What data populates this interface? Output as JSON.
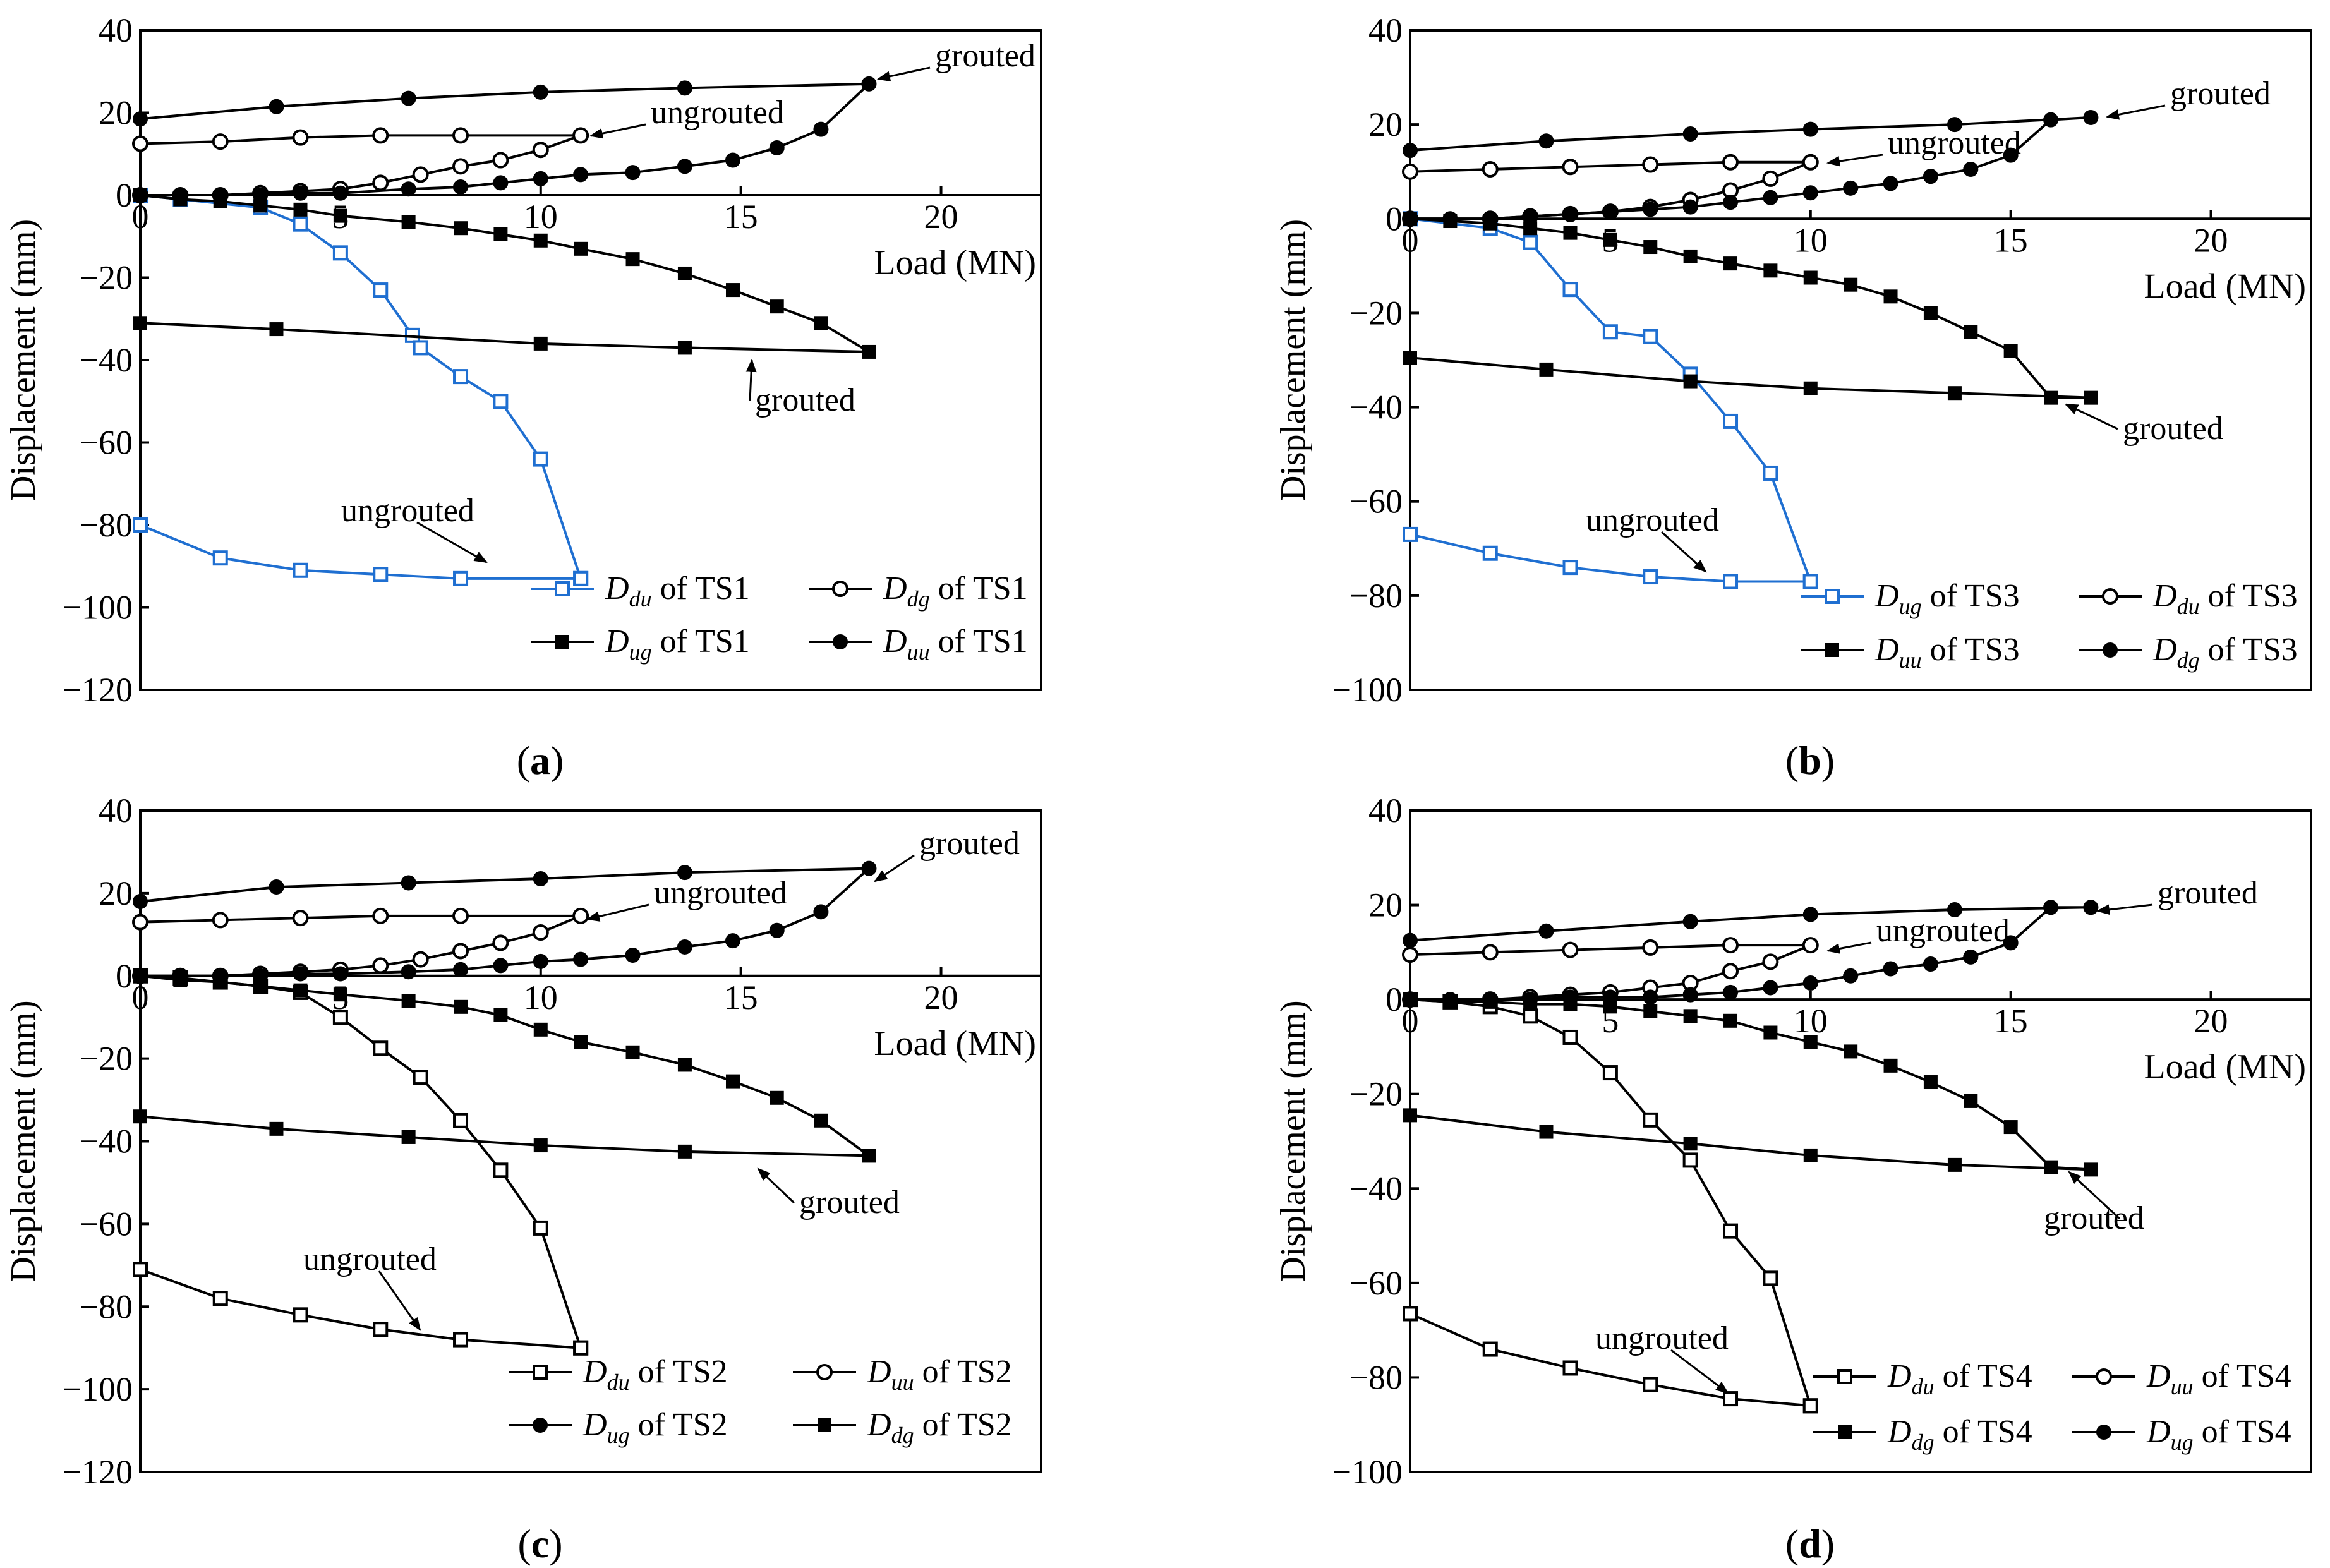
{
  "chart_data": [
    {
      "type": "line",
      "panel_label": "(a)",
      "xlabel": "Load (MN)",
      "ylabel": "Displacement (mm)",
      "xlim": [
        0,
        22.5
      ],
      "ylim": [
        -120,
        40
      ],
      "xticks": [
        "0",
        "5",
        "10",
        "15",
        "20"
      ],
      "yticks": [
        "40",
        "20",
        "0",
        "−20",
        "−40",
        "−60",
        "−80",
        "−100",
        "−120"
      ],
      "series": [
        {
          "name": "D_du of TS1",
          "sym": "D",
          "sub": "du",
          "suffix": " of TS1",
          "marker": "open-square",
          "color": "#1f6fd1",
          "x": [
            0,
            1,
            3,
            4,
            5,
            6,
            6.8,
            7,
            8,
            9,
            10,
            11,
            11,
            8,
            6,
            4,
            2,
            0
          ],
          "y": [
            0,
            -1,
            -3,
            -7,
            -14,
            -23,
            -34,
            -37,
            -44,
            -50,
            -64,
            -93,
            -93,
            -93,
            -92,
            -91,
            -88,
            -80
          ]
        },
        {
          "name": "D_dg of TS1",
          "sym": "D",
          "sub": "dg",
          "suffix": " of TS1",
          "marker": "open-circle",
          "color": "#000000",
          "x": [
            0,
            1,
            2,
            3,
            4,
            5,
            6,
            7,
            8,
            9,
            10,
            11,
            8,
            6,
            4,
            2,
            0
          ],
          "y": [
            0,
            0,
            0,
            0.5,
            1,
            1.5,
            3,
            5,
            7,
            8.5,
            11,
            14.5,
            14.5,
            14.5,
            14,
            13,
            12.5
          ]
        },
        {
          "name": "D_ug of TS1",
          "sym": "D",
          "sub": "ug",
          "suffix": " of TS1",
          "marker": "filled-square",
          "color": "#000000",
          "x": [
            0,
            1,
            2,
            3,
            4,
            5,
            6.7,
            8,
            9,
            10,
            11,
            12.3,
            13.6,
            14.8,
            15.9,
            17,
            18.2,
            13.6,
            10,
            3.4,
            0
          ],
          "y": [
            0,
            -1,
            -1.5,
            -2.5,
            -3.5,
            -5,
            -6.5,
            -8,
            -9.5,
            -11,
            -13,
            -15.5,
            -19,
            -23,
            -27,
            -31,
            -38,
            -37,
            -36,
            -32.5,
            -31
          ]
        },
        {
          "name": "D_uu of TS1",
          "sym": "D",
          "sub": "uu",
          "suffix": " of TS1",
          "marker": "filled-circle",
          "color": "#000000",
          "x": [
            0,
            1,
            2,
            3,
            4,
            5,
            6.7,
            8,
            9,
            10,
            11,
            12.3,
            13.6,
            14.8,
            15.9,
            17,
            18.2,
            13.6,
            10,
            6.7,
            3.4,
            0
          ],
          "y": [
            0,
            0,
            0,
            0,
            0.5,
            0.5,
            1.5,
            2,
            3,
            4,
            5,
            5.5,
            7,
            8.5,
            11.5,
            16,
            27,
            26,
            25,
            23.5,
            21.5,
            18.5
          ]
        }
      ],
      "annotations": [
        {
          "text": "grouted"
        },
        {
          "text": "ungrouted"
        },
        {
          "text": "grouted"
        },
        {
          "text": "ungrouted"
        }
      ]
    },
    {
      "type": "line",
      "panel_label": "(b)",
      "xlabel": "Load (MN)",
      "ylabel": "Displacement (mm)",
      "xlim": [
        0,
        22.5
      ],
      "ylim": [
        -100,
        40
      ],
      "xticks": [
        "0",
        "5",
        "10",
        "15",
        "20"
      ],
      "yticks": [
        "40",
        "20",
        "0",
        "−20",
        "−40",
        "−60",
        "−80",
        "−100"
      ],
      "series": [
        {
          "name": "D_ug of TS3",
          "sym": "D",
          "sub": "ug",
          "suffix": " of TS3",
          "marker": "open-square",
          "color": "#1f6fd1",
          "x": [
            0,
            2,
            3,
            4,
            5,
            6,
            7,
            8,
            9,
            10,
            10,
            8,
            6,
            4,
            2,
            0
          ],
          "y": [
            0,
            -2,
            -5,
            -15,
            -24,
            -25,
            -33,
            -43,
            -54,
            -77,
            -77,
            -77,
            -76,
            -74,
            -71,
            -67
          ]
        },
        {
          "name": "D_du of TS3",
          "sym": "D",
          "sub": "du",
          "suffix": " of TS3",
          "marker": "open-circle",
          "color": "#000000",
          "x": [
            0,
            2,
            3,
            4,
            5,
            6,
            7,
            8,
            9,
            10,
            8,
            6,
            4,
            2,
            0
          ],
          "y": [
            0,
            0,
            0.5,
            1,
            1.5,
            2.5,
            4,
            6,
            8.5,
            12,
            12,
            11.5,
            11,
            10.5,
            10
          ]
        },
        {
          "name": "D_uu of TS3",
          "sym": "D",
          "sub": "uu",
          "suffix": " of TS3",
          "marker": "filled-square",
          "color": "#000000",
          "x": [
            0,
            1,
            2,
            3,
            4,
            5,
            6,
            7,
            8,
            9,
            10,
            11,
            12,
            13,
            14,
            15,
            16,
            17,
            13.6,
            10,
            7,
            3.4,
            0
          ],
          "y": [
            0,
            -0.5,
            -1,
            -2,
            -3,
            -4.5,
            -6,
            -8,
            -9.5,
            -11,
            -12.5,
            -14,
            -16.5,
            -20,
            -24,
            -28,
            -38,
            -38,
            -37,
            -36,
            -34.5,
            -32,
            -29.5
          ]
        },
        {
          "name": "D_dg of TS3",
          "sym": "D",
          "sub": "dg",
          "suffix": " of TS3",
          "marker": "filled-circle",
          "color": "#000000",
          "x": [
            0,
            1,
            2,
            3,
            4,
            5,
            6,
            7,
            8,
            9,
            10,
            11,
            12,
            13,
            14,
            15,
            16,
            17,
            13.6,
            10,
            7,
            3.4,
            0
          ],
          "y": [
            0,
            0,
            0,
            0.5,
            1,
            1.5,
            2,
            2.5,
            3.5,
            4.5,
            5.5,
            6.5,
            7.5,
            9,
            10.5,
            13.5,
            21,
            21.5,
            20,
            19,
            18,
            16.5,
            14.5
          ]
        }
      ],
      "annotations": [
        {
          "text": "grouted"
        },
        {
          "text": "ungrouted"
        },
        {
          "text": "grouted"
        },
        {
          "text": "ungrouted"
        }
      ]
    },
    {
      "type": "line",
      "panel_label": "(c)",
      "xlabel": "Load (MN)",
      "ylabel": "Displacement (mm)",
      "xlim": [
        0,
        22.5
      ],
      "ylim": [
        -120,
        40
      ],
      "xticks": [
        "0",
        "5",
        "10",
        "15",
        "20"
      ],
      "yticks": [
        "40",
        "20",
        "0",
        "−20",
        "−40",
        "−60",
        "−80",
        "−100",
        "−120"
      ],
      "series": [
        {
          "name": "D_du of TS2",
          "sym": "D",
          "sub": "du",
          "suffix": " of TS2",
          "marker": "open-square",
          "color": "#000000",
          "x": [
            0,
            1,
            2,
            3,
            4,
            5,
            6,
            7,
            8,
            9,
            10,
            11,
            11,
            8,
            6,
            4,
            2,
            0
          ],
          "y": [
            0,
            -0.5,
            -1.5,
            -2.5,
            -4,
            -10,
            -17.5,
            -24.5,
            -35,
            -47,
            -61,
            -90,
            -90,
            -88,
            -85.5,
            -82,
            -78,
            -71
          ]
        },
        {
          "name": "D_uu of TS2",
          "sym": "D",
          "sub": "uu",
          "suffix": " of TS2",
          "marker": "open-circle",
          "color": "#000000",
          "x": [
            0,
            1,
            2,
            3,
            4,
            5,
            6,
            7,
            8,
            9,
            10,
            11,
            8,
            6,
            4,
            2,
            0
          ],
          "y": [
            0,
            0,
            0,
            0.5,
            1,
            1.5,
            2.5,
            4,
            6,
            8,
            10.5,
            14.5,
            14.5,
            14.5,
            14,
            13.5,
            13
          ]
        },
        {
          "name": "D_ug of TS2",
          "sym": "D",
          "sub": "ug",
          "suffix": " of TS2",
          "marker": "filled-circle",
          "color": "#000000",
          "x": [
            0,
            1,
            2,
            3,
            4,
            5,
            6.7,
            8,
            9,
            10,
            11,
            12.3,
            13.6,
            14.8,
            15.9,
            17,
            18.2,
            13.6,
            10,
            6.7,
            3.4,
            0
          ],
          "y": [
            0,
            0,
            0,
            0,
            0.5,
            0.5,
            1,
            1.5,
            2.5,
            3.5,
            4,
            5,
            7,
            8.5,
            11,
            15.5,
            26,
            25,
            23.5,
            22.5,
            21.5,
            18
          ]
        },
        {
          "name": "D_dg of TS2",
          "sym": "D",
          "sub": "dg",
          "suffix": " of TS2",
          "marker": "filled-square",
          "color": "#000000",
          "x": [
            0,
            1,
            2,
            3,
            4,
            5,
            6.7,
            8,
            9,
            10,
            11,
            12.3,
            13.6,
            14.8,
            15.9,
            17,
            18.2,
            13.6,
            10,
            6.7,
            3.4,
            0
          ],
          "y": [
            0,
            -1,
            -1.5,
            -2.5,
            -3.5,
            -4.5,
            -6,
            -7.5,
            -9.5,
            -13,
            -16,
            -18.5,
            -21.5,
            -25.5,
            -29.5,
            -35,
            -43.5,
            -42.5,
            -41,
            -39,
            -37,
            -34
          ]
        }
      ],
      "annotations": [
        {
          "text": "grouted"
        },
        {
          "text": "ungrouted"
        },
        {
          "text": "grouted"
        },
        {
          "text": "ungrouted"
        }
      ]
    },
    {
      "type": "line",
      "panel_label": "(d)",
      "xlabel": "Load (MN)",
      "ylabel": "Displacement (mm)",
      "xlim": [
        0,
        22.5
      ],
      "ylim": [
        -100,
        40
      ],
      "xticks": [
        "0",
        "5",
        "10",
        "15",
        "20"
      ],
      "yticks": [
        "40",
        "20",
        "0",
        "−20",
        "−40",
        "−60",
        "−80",
        "−100"
      ],
      "series": [
        {
          "name": "D_du of TS4",
          "sym": "D",
          "sub": "du",
          "suffix": " of TS4",
          "marker": "open-square",
          "color": "#000000",
          "x": [
            0,
            1,
            2,
            3,
            4,
            5,
            6,
            7,
            8,
            9,
            10,
            10,
            8,
            6,
            4,
            2,
            0
          ],
          "y": [
            0,
            -0.5,
            -1.5,
            -3.5,
            -8,
            -15.5,
            -25.5,
            -34,
            -49,
            -59,
            -86,
            -86,
            -84.5,
            -81.5,
            -78,
            -74,
            -66.5
          ]
        },
        {
          "name": "D_uu of TS4",
          "sym": "D",
          "sub": "uu",
          "suffix": " of TS4",
          "marker": "open-circle",
          "color": "#000000",
          "x": [
            0,
            2,
            3,
            4,
            5,
            6,
            7,
            8,
            9,
            10,
            8,
            6,
            4,
            2,
            0
          ],
          "y": [
            0,
            0,
            0.5,
            1,
            1.5,
            2.5,
            3.5,
            6,
            8,
            11.5,
            11.5,
            11,
            10.5,
            10,
            9.5
          ]
        },
        {
          "name": "D_dg of TS4",
          "sym": "D",
          "sub": "dg",
          "suffix": " of TS4",
          "marker": "filled-square",
          "color": "#000000",
          "x": [
            0,
            1,
            2,
            3,
            4,
            5,
            6,
            7,
            8,
            9,
            10,
            11,
            12,
            13,
            14,
            15,
            16,
            17,
            13.6,
            10,
            7,
            3.4,
            0
          ],
          "y": [
            0,
            -0.5,
            -0.5,
            -1,
            -1,
            -1.5,
            -2.5,
            -3.5,
            -4.5,
            -7,
            -9,
            -11,
            -14,
            -17.5,
            -21.5,
            -27,
            -35.5,
            -36,
            -35,
            -33,
            -30.5,
            -28,
            -24.5
          ]
        },
        {
          "name": "D_ug of TS4",
          "sym": "D",
          "sub": "ug",
          "suffix": " of TS4",
          "marker": "filled-circle",
          "color": "#000000",
          "x": [
            0,
            1,
            2,
            3,
            4,
            5,
            6,
            7,
            8,
            9,
            10,
            11,
            12,
            13,
            14,
            15,
            16,
            17,
            13.6,
            10,
            7,
            3.4,
            0
          ],
          "y": [
            0,
            0,
            0,
            0,
            0.5,
            0.5,
            0.5,
            1,
            1.5,
            2.5,
            3.5,
            5,
            6.5,
            7.5,
            9,
            12,
            19.5,
            19.5,
            19,
            18,
            16.5,
            14.5,
            12.5
          ]
        }
      ],
      "annotations": [
        {
          "text": "grouted"
        },
        {
          "text": "ungrouted"
        },
        {
          "text": "grouted"
        },
        {
          "text": "ungrouted"
        }
      ]
    }
  ]
}
